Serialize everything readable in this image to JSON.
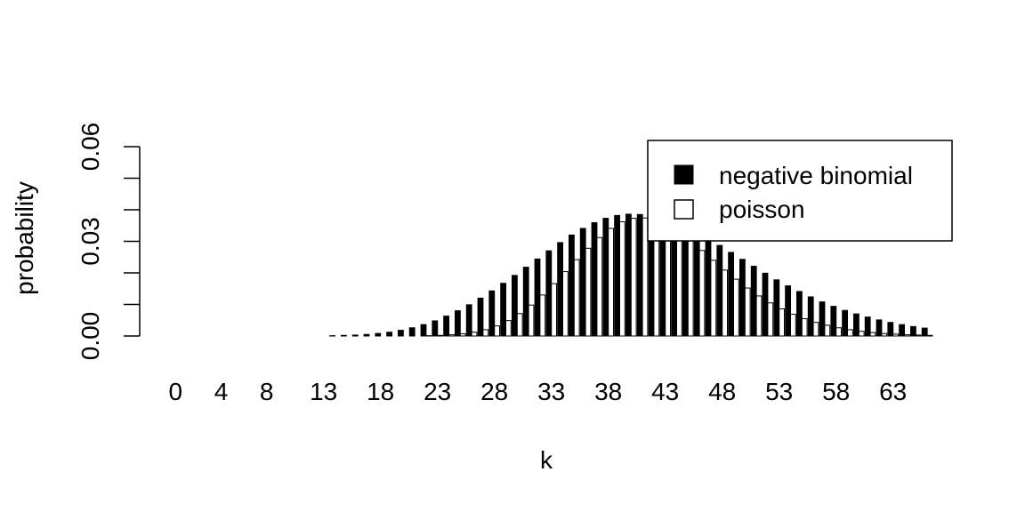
{
  "chart_data": {
    "type": "bar",
    "xlabel": "k",
    "ylabel": "probability",
    "ylim": [
      0,
      0.06
    ],
    "yticks": [
      "0.00",
      "0.03",
      "0.06"
    ],
    "xtick_labels": [
      "0",
      "4",
      "8",
      "13",
      "18",
      "23",
      "28",
      "33",
      "38",
      "43",
      "48",
      "53",
      "58",
      "63"
    ],
    "categories": [
      0,
      1,
      2,
      3,
      4,
      5,
      6,
      7,
      8,
      9,
      10,
      11,
      12,
      13,
      14,
      15,
      16,
      17,
      18,
      19,
      20,
      21,
      22,
      23,
      24,
      25,
      26,
      27,
      28,
      29,
      30,
      31,
      32,
      33,
      34,
      35,
      36,
      37,
      38,
      39,
      40,
      41,
      42,
      43,
      44,
      45,
      46,
      47,
      48,
      49,
      50,
      51,
      52,
      53,
      54,
      55,
      56,
      57,
      58,
      59,
      60,
      61,
      62,
      63,
      64,
      65,
      66
    ],
    "legend_position": "top-right",
    "series": [
      {
        "name": "negative binomial",
        "color": "#000000",
        "values": [
          0,
          0,
          0,
          0,
          0,
          0,
          0,
          0,
          0,
          0,
          0,
          0,
          0,
          0,
          0.0001,
          0.0002,
          0.0003,
          0.0005,
          0.0008,
          0.0012,
          0.0018,
          0.0026,
          0.0036,
          0.0048,
          0.0063,
          0.008,
          0.0099,
          0.012,
          0.0143,
          0.0167,
          0.0192,
          0.0218,
          0.0244,
          0.027,
          0.0296,
          0.032,
          0.0341,
          0.0359,
          0.0373,
          0.0382,
          0.0386,
          0.0385,
          0.0381,
          0.0373,
          0.0361,
          0.0346,
          0.0328,
          0.0308,
          0.0287,
          0.0265,
          0.0243,
          0.0221,
          0.0199,
          0.0178,
          0.0159,
          0.0141,
          0.0124,
          0.0108,
          0.0094,
          0.0081,
          0.007,
          0.006,
          0.0051,
          0.0043,
          0.0036,
          0.003,
          0.0025
        ]
      },
      {
        "name": "poisson",
        "color": "#ffffff",
        "values": [
          0,
          0,
          0,
          0,
          0,
          0,
          0,
          0,
          0,
          0,
          0,
          0,
          0,
          0,
          0,
          0,
          0,
          0,
          0,
          0,
          0,
          0,
          0.0001,
          0.0002,
          0.0004,
          0.0007,
          0.0012,
          0.002,
          0.0032,
          0.0049,
          0.0071,
          0.0098,
          0.013,
          0.0166,
          0.0204,
          0.0242,
          0.0278,
          0.0312,
          0.0341,
          0.0362,
          0.0373,
          0.0374,
          0.0366,
          0.035,
          0.0328,
          0.0301,
          0.0271,
          0.024,
          0.0209,
          0.018,
          0.0152,
          0.0127,
          0.0105,
          0.0086,
          0.0069,
          0.0055,
          0.0043,
          0.0034,
          0.0026,
          0.002,
          0.0015,
          0.0011,
          0.0008,
          0.0006,
          0.0004,
          0.0003,
          0.0002
        ]
      }
    ]
  }
}
